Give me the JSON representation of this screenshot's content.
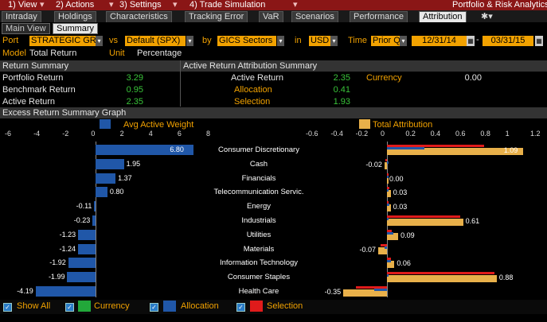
{
  "menubar": {
    "items": [
      "1) View",
      "2) Actions",
      "3) Settings",
      "4) Trade Simulation"
    ],
    "title": "Portfolio & Risk Analytics"
  },
  "tabs": [
    "Intraday",
    "Holdings",
    "Characteristics",
    "Tracking Error",
    "VaR",
    "Scenarios",
    "Performance",
    "Attribution"
  ],
  "active_tab": "Attribution",
  "subtabs": [
    "Main View",
    "Summary"
  ],
  "controls": {
    "port_label": "Port",
    "port_value": "STRATEGIC GRO",
    "vs_label": "vs",
    "benchmark_value": "Default (SPX)",
    "by_label": "by",
    "sector_value": "GICS Sectors",
    "in_label": "in",
    "currency_value": "USD",
    "time_label": "Time",
    "time_value": "Prior Q",
    "start_date": "12/31/14",
    "end_date": "03/31/15",
    "model_label": "Model",
    "model_value": "Total Return",
    "unit_label": "Unit",
    "unit_value": "Percentage"
  },
  "return_summary": {
    "header": "Return Summary",
    "rows": [
      {
        "label": "Portfolio Return",
        "value": "3.29"
      },
      {
        "label": "Benchmark Return",
        "value": "0.95"
      },
      {
        "label": "Active Return",
        "value": "2.35"
      }
    ]
  },
  "attribution_summary": {
    "header": "Active Return Attribution Summary",
    "rows": [
      {
        "label": "Active Return",
        "value": "2.35"
      },
      {
        "label": "Allocation",
        "value": "0.41"
      },
      {
        "label": "Selection",
        "value": "1.93"
      }
    ],
    "currency_label": "Currency",
    "currency_value": "0.00"
  },
  "graph_header": "Excess Return Summary Graph",
  "colors": {
    "allocation": "#2057a8",
    "selection": "#e01b1b",
    "currency": "#22a83a",
    "total": "#e8b04a",
    "weight": "#2057a8"
  },
  "chart_data": [
    {
      "type": "bar",
      "title": "Avg Active Weight",
      "orientation": "horizontal",
      "categories": [
        "Consumer Discretionary",
        "Cash",
        "Financials",
        "Telecommunication Servic.",
        "Energy",
        "Industrials",
        "Utilities",
        "Materials",
        "Information Technology",
        "Consumer Staples",
        "Health Care"
      ],
      "values": [
        6.8,
        1.95,
        1.37,
        0.8,
        -0.11,
        -0.23,
        -1.23,
        -1.24,
        -1.92,
        -1.99,
        -4.19
      ],
      "labels": [
        "6.80",
        "1.95",
        "1.37",
        "0.80",
        "-0.11",
        "-0.23",
        "-1.23",
        "-1.24",
        "-1.92",
        "-1.99",
        "-4.19"
      ],
      "xlim": [
        -6,
        8
      ],
      "xticks": [
        "-6",
        "-4",
        "-2",
        "0",
        "2",
        "4",
        "6",
        "8"
      ],
      "xtick_values": [
        -6,
        -4,
        -2,
        0,
        2,
        4,
        6,
        8
      ]
    },
    {
      "type": "bar",
      "title": "Total Attribution",
      "orientation": "horizontal",
      "categories": [
        "Consumer Discretionary",
        "Cash",
        "Financials",
        "Telecommunication Servic.",
        "Energy",
        "Industrials",
        "Utilities",
        "Materials",
        "Information Technology",
        "Consumer Staples",
        "Health Care"
      ],
      "values": [
        1.09,
        -0.02,
        0.0,
        0.03,
        0.03,
        0.61,
        0.09,
        -0.07,
        0.06,
        0.88,
        -0.35
      ],
      "labels": [
        "1.09",
        "-0.02",
        "0.00",
        "0.03",
        "0.03",
        "0.61",
        "0.09",
        "-0.07",
        "0.06",
        "0.88",
        "-0.35"
      ],
      "allocation": [
        0.3,
        0.0,
        0.0,
        0.01,
        0.02,
        0.0,
        0.05,
        -0.02,
        0.03,
        0.0,
        -0.1
      ],
      "selection": [
        0.78,
        -0.01,
        0.0,
        0.02,
        0.01,
        0.59,
        0.04,
        -0.05,
        0.03,
        0.86,
        -0.25
      ],
      "xlim": [
        -0.6,
        1.2
      ],
      "xticks": [
        "-0.6",
        "-0.4",
        "-0.2",
        "0",
        "0.2",
        "0.4",
        "0.6",
        "0.8",
        "1",
        "1.2"
      ],
      "xtick_values": [
        -0.6,
        -0.4,
        -0.2,
        0,
        0.2,
        0.4,
        0.6,
        0.8,
        1.0,
        1.2
      ]
    }
  ],
  "legend": {
    "show_all": "Show All",
    "currency": "Currency",
    "allocation": "Allocation",
    "selection": "Selection"
  }
}
